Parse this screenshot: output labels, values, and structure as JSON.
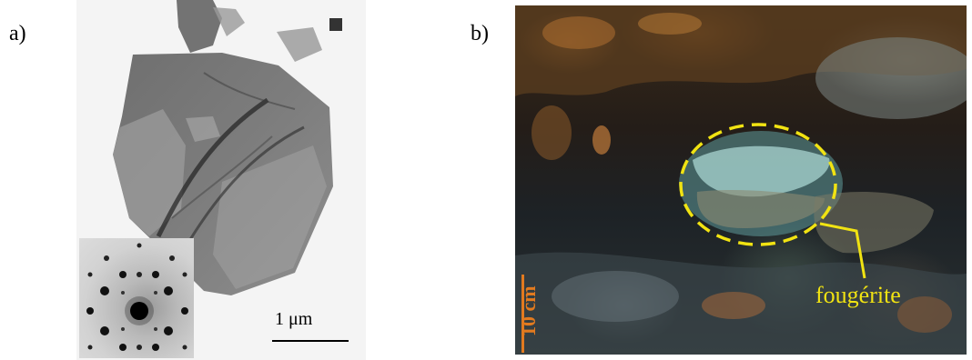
{
  "panels": {
    "a": {
      "label": "a)",
      "scale_label": "1 μm"
    },
    "b": {
      "label": "b)",
      "scale_label": "10 cm",
      "annotation": "fougérite",
      "annotation_color": "#f1e312",
      "scale_color": "#e27a1f"
    }
  }
}
